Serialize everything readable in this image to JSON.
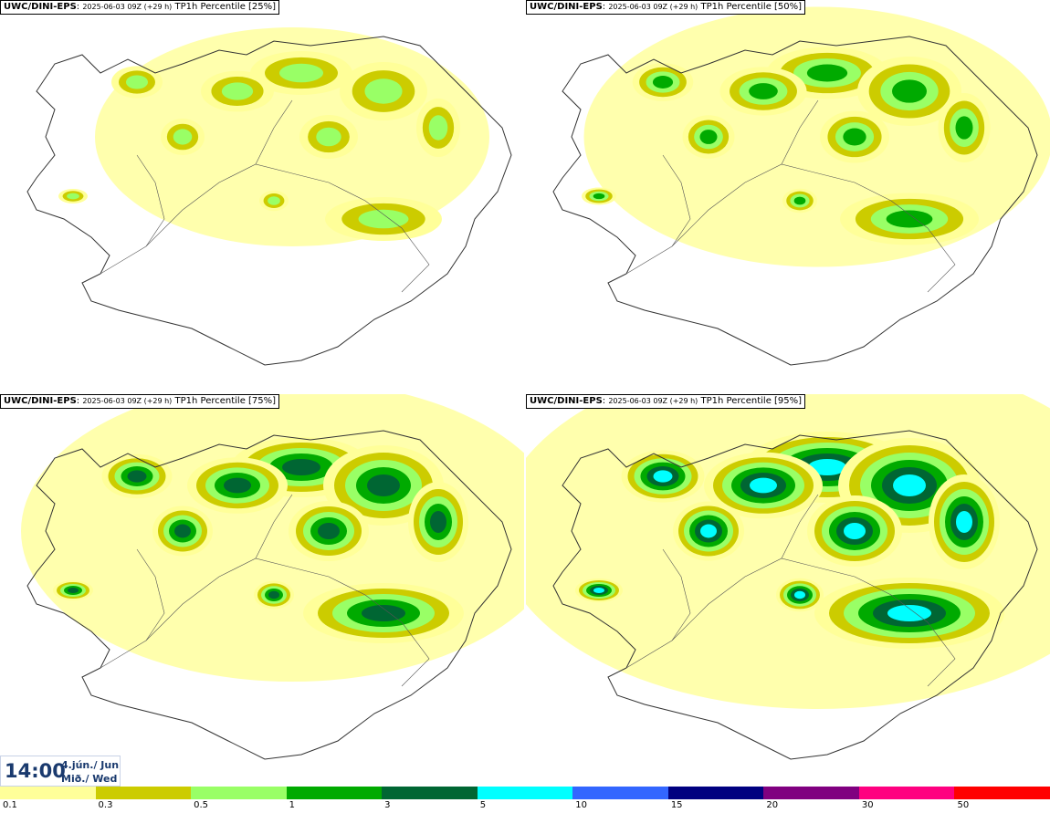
{
  "panels": [
    {
      "model": "UWC/DINI-EPS",
      "run": "2025-06-03 09Z (+29 h)",
      "product": "TP1h Percentile [25%]",
      "percentile": 25
    },
    {
      "model": "UWC/DINI-EPS",
      "run": "2025-06-03 09Z (+29 h)",
      "product": "TP1h Percentile [50%]",
      "percentile": 50
    },
    {
      "model": "UWC/DINI-EPS",
      "run": "2025-06-03 09Z (+29 h)",
      "product": "TP1h Percentile [75%]",
      "percentile": 75
    },
    {
      "model": "UWC/DINI-EPS",
      "run": "2025-06-03 09Z (+29 h)",
      "product": "TP1h Percentile [95%]",
      "percentile": 95
    }
  ],
  "valid_time": {
    "clock": "14:00",
    "date_line1": "4.jún./ Jun",
    "date_line2": "Mið./ Wed"
  },
  "legend": {
    "labels": [
      "0.1",
      "0.3",
      "0.5",
      "1",
      "3",
      "5",
      "10",
      "15",
      "20",
      "30",
      "50"
    ],
    "colors": [
      "#ffff99",
      "#cccc00",
      "#99ff66",
      "#00aa00",
      "#006633",
      "#00ffff",
      "#3366ff",
      "#000080",
      "#800080",
      "#ff0080",
      "#ff0000"
    ]
  }
}
